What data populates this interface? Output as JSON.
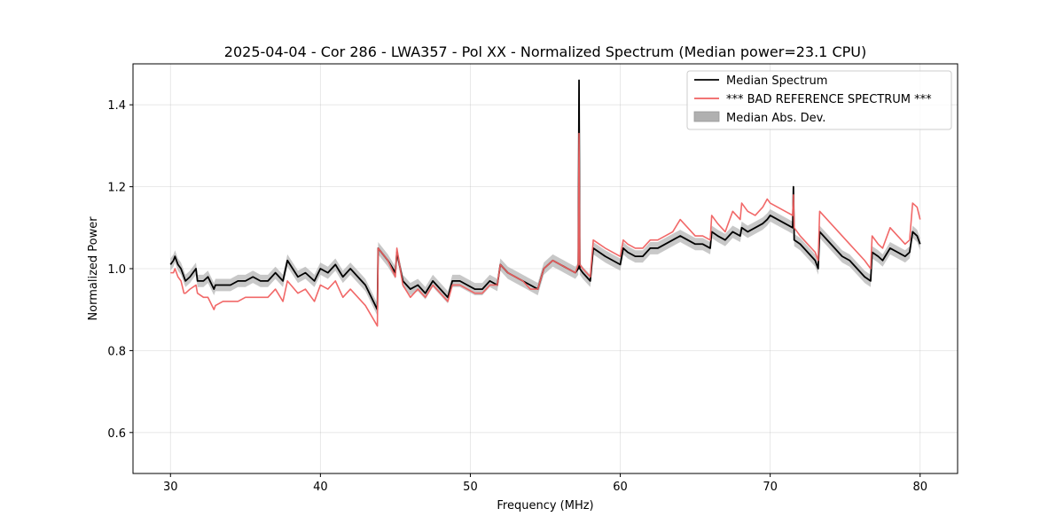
{
  "chart_data": {
    "type": "line",
    "title": "2025-04-04 - Cor 286 - LWA357 - Pol XX - Normalized Spectrum (Median power=23.1 CPU)",
    "xlabel": "Frequency (MHz)",
    "ylabel": "Normalized Power",
    "xlim": [
      27.5,
      82.5
    ],
    "ylim": [
      0.5,
      1.5
    ],
    "xticks": [
      30,
      40,
      50,
      60,
      70,
      80
    ],
    "xtick_labels": [
      "30",
      "40",
      "50",
      "60",
      "70",
      "80"
    ],
    "yticks": [
      0.6,
      0.8,
      1.0,
      1.2,
      1.4
    ],
    "ytick_labels": [
      "0.6",
      "0.8",
      "1.0",
      "1.2",
      "1.4"
    ],
    "grid": true,
    "legend_position": "top-right",
    "series": [
      {
        "name": "Median Spectrum",
        "color": "#000000",
        "type": "line",
        "x": [
          30.0,
          30.2,
          30.3,
          30.5,
          30.7,
          30.9,
          31.0,
          31.3,
          31.7,
          31.8,
          32.2,
          32.5,
          32.9,
          33.0,
          33.5,
          34.0,
          34.5,
          35.0,
          35.5,
          36.0,
          36.5,
          37.0,
          37.5,
          37.8,
          38.5,
          39.0,
          39.6,
          40.0,
          40.5,
          41.0,
          41.5,
          42.0,
          42.5,
          43.0,
          43.8,
          43.85,
          44.5,
          45.0,
          45.1,
          45.5,
          46.0,
          46.5,
          47.0,
          47.5,
          48.0,
          48.5,
          48.8,
          49.3,
          49.8,
          50.3,
          50.8,
          51.3,
          51.8,
          52.0,
          52.5,
          53.0,
          53.5,
          54.0,
          54.5,
          54.9,
          55.5,
          56.0,
          56.5,
          57.0,
          57.2,
          57.25,
          57.3,
          57.5,
          58.0,
          58.2,
          58.6,
          59.0,
          59.5,
          60.0,
          60.2,
          60.5,
          61.0,
          61.5,
          62.0,
          62.5,
          63.0,
          63.5,
          64.0,
          64.5,
          65.0,
          65.5,
          66.0,
          66.1,
          66.5,
          67.0,
          67.5,
          68.0,
          68.1,
          68.5,
          69.0,
          69.5,
          69.8,
          70.0,
          70.5,
          71.0,
          71.5,
          71.55,
          71.6,
          72.0,
          72.5,
          73.0,
          73.2,
          73.3,
          73.8,
          74.3,
          74.8,
          75.3,
          75.8,
          76.3,
          76.7,
          76.8,
          77.2,
          77.5,
          78.0,
          78.5,
          79.0,
          79.3,
          79.5,
          79.8,
          80.0
        ],
        "values": [
          1.01,
          1.02,
          1.03,
          1.01,
          1.0,
          0.98,
          0.97,
          0.98,
          1.0,
          0.97,
          0.97,
          0.98,
          0.95,
          0.96,
          0.96,
          0.96,
          0.97,
          0.97,
          0.98,
          0.97,
          0.97,
          0.99,
          0.97,
          1.02,
          0.98,
          0.99,
          0.97,
          1.0,
          0.99,
          1.01,
          0.98,
          1.0,
          0.98,
          0.96,
          0.9,
          1.05,
          1.02,
          0.99,
          1.04,
          0.97,
          0.95,
          0.96,
          0.94,
          0.97,
          0.95,
          0.93,
          0.97,
          0.97,
          0.96,
          0.95,
          0.95,
          0.97,
          0.96,
          1.01,
          0.99,
          0.98,
          0.97,
          0.96,
          0.95,
          1.0,
          1.02,
          1.01,
          1.0,
          0.99,
          1.0,
          1.46,
          1.0,
          0.99,
          0.97,
          1.05,
          1.04,
          1.03,
          1.02,
          1.01,
          1.05,
          1.04,
          1.03,
          1.03,
          1.05,
          1.05,
          1.06,
          1.07,
          1.08,
          1.07,
          1.06,
          1.06,
          1.05,
          1.09,
          1.08,
          1.07,
          1.09,
          1.08,
          1.1,
          1.09,
          1.1,
          1.11,
          1.12,
          1.13,
          1.12,
          1.11,
          1.1,
          1.2,
          1.07,
          1.06,
          1.04,
          1.02,
          1.0,
          1.09,
          1.07,
          1.05,
          1.03,
          1.02,
          1.0,
          0.98,
          0.97,
          1.04,
          1.03,
          1.02,
          1.05,
          1.04,
          1.03,
          1.04,
          1.09,
          1.08,
          1.06
        ]
      },
      {
        "name": "*** BAD REFERENCE SPECTRUM ***",
        "color": "#f06060",
        "type": "line",
        "x": [
          30.0,
          30.2,
          30.3,
          30.5,
          30.7,
          30.9,
          31.0,
          31.3,
          31.7,
          31.8,
          32.2,
          32.5,
          32.9,
          33.0,
          33.5,
          34.0,
          34.5,
          35.0,
          35.5,
          36.0,
          36.5,
          37.0,
          37.5,
          37.8,
          38.5,
          39.0,
          39.6,
          40.0,
          40.5,
          41.0,
          41.5,
          42.0,
          42.5,
          43.0,
          43.8,
          43.85,
          44.5,
          45.0,
          45.1,
          45.5,
          46.0,
          46.5,
          47.0,
          47.5,
          48.0,
          48.5,
          48.8,
          49.3,
          49.8,
          50.3,
          50.8,
          51.3,
          51.8,
          52.0,
          52.5,
          53.0,
          53.5,
          54.0,
          54.5,
          54.9,
          55.5,
          56.0,
          56.5,
          57.0,
          57.2,
          57.25,
          57.3,
          57.5,
          58.0,
          58.2,
          58.6,
          59.0,
          59.5,
          60.0,
          60.2,
          60.5,
          61.0,
          61.5,
          62.0,
          62.5,
          63.0,
          63.5,
          64.0,
          64.5,
          65.0,
          65.5,
          66.0,
          66.1,
          66.5,
          67.0,
          67.5,
          68.0,
          68.1,
          68.5,
          69.0,
          69.5,
          69.8,
          70.0,
          70.5,
          71.0,
          71.5,
          71.55,
          71.6,
          72.0,
          72.5,
          73.0,
          73.2,
          73.3,
          73.8,
          74.3,
          74.8,
          75.3,
          75.8,
          76.3,
          76.7,
          76.8,
          77.2,
          77.5,
          78.0,
          78.5,
          79.0,
          79.3,
          79.5,
          79.8,
          80.0
        ],
        "values": [
          0.99,
          0.99,
          1.0,
          0.98,
          0.97,
          0.94,
          0.94,
          0.95,
          0.96,
          0.94,
          0.93,
          0.93,
          0.9,
          0.91,
          0.92,
          0.92,
          0.92,
          0.93,
          0.93,
          0.93,
          0.93,
          0.95,
          0.92,
          0.97,
          0.94,
          0.95,
          0.92,
          0.96,
          0.95,
          0.97,
          0.93,
          0.95,
          0.93,
          0.91,
          0.86,
          1.05,
          1.02,
          0.98,
          1.05,
          0.96,
          0.93,
          0.95,
          0.93,
          0.96,
          0.94,
          0.92,
          0.96,
          0.96,
          0.95,
          0.94,
          0.94,
          0.96,
          0.96,
          1.01,
          0.99,
          0.98,
          0.97,
          0.95,
          0.95,
          1.0,
          1.02,
          1.01,
          1.0,
          0.99,
          1.01,
          1.33,
          1.01,
          1.0,
          0.98,
          1.07,
          1.06,
          1.05,
          1.04,
          1.03,
          1.07,
          1.06,
          1.05,
          1.05,
          1.07,
          1.07,
          1.08,
          1.09,
          1.12,
          1.1,
          1.08,
          1.08,
          1.07,
          1.13,
          1.11,
          1.09,
          1.14,
          1.12,
          1.16,
          1.14,
          1.13,
          1.15,
          1.17,
          1.16,
          1.15,
          1.14,
          1.13,
          1.18,
          1.1,
          1.08,
          1.06,
          1.04,
          1.02,
          1.14,
          1.12,
          1.1,
          1.08,
          1.06,
          1.04,
          1.02,
          1.0,
          1.08,
          1.06,
          1.05,
          1.1,
          1.08,
          1.06,
          1.07,
          1.16,
          1.15,
          1.12
        ]
      },
      {
        "name": "Median Abs. Dev.",
        "color": "#b0b0b0",
        "type": "band",
        "half_width": 0.015
      }
    ]
  }
}
